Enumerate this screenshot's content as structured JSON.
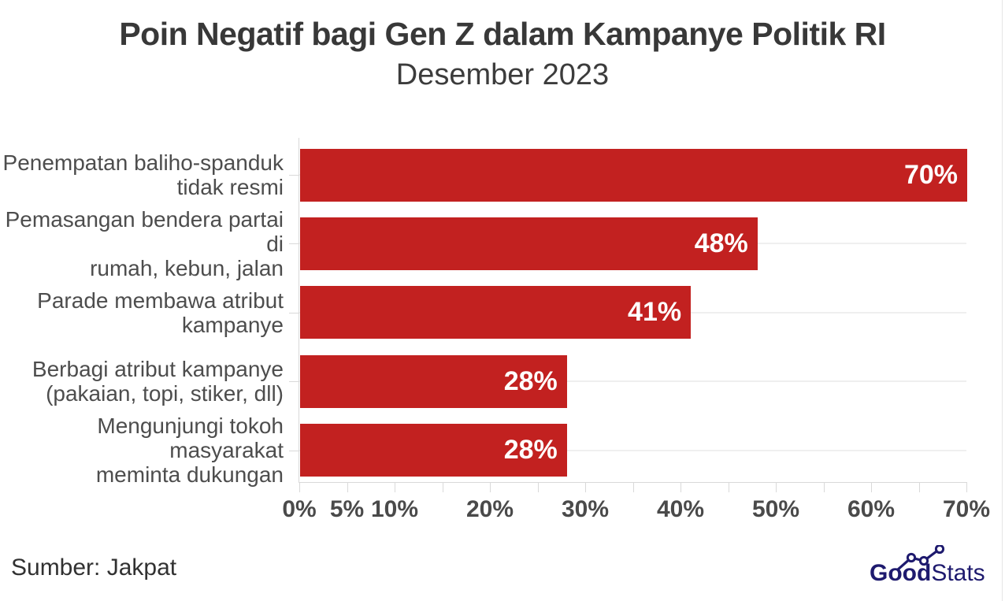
{
  "header": {
    "title": "Poin Negatif bagi Gen Z dalam Kampanye Politik RI",
    "subtitle": "Desember 2023"
  },
  "footer": {
    "source": "Sumber: Jakpat"
  },
  "logo": {
    "bold": "Good",
    "light": "Stats",
    "motif": "ascending-line-chart-icon"
  },
  "colors": {
    "bar": "#c22120",
    "title": "#383838",
    "category_label": "#4d4d4d",
    "tick_label": "#4a4a4a",
    "value_label": "#ffffff",
    "axis_line": "#d9d9d9",
    "grid_line": "#efefef",
    "logo_navy": "#1e1a6e",
    "source_text": "#313131"
  },
  "chart_data": {
    "type": "bar",
    "orientation": "horizontal",
    "title": "Poin Negatif bagi Gen Z dalam Kampanye Politik RI",
    "subtitle": "Desember 2023",
    "categories": [
      "Penempatan baliho-spanduk tidak resmi",
      "Pemasangan bendera partai di rumah, kebun, jalan",
      "Parade membawa atribut kampanye",
      "Berbagi atribut kampanye (pakaian, topi, stiker, dll)",
      "Mengunjungi tokoh masyarakat meminta dukungan"
    ],
    "categories_wrapped": [
      "Penempatan baliho-spanduk\ntidak resmi",
      "Pemasangan bendera partai di\nrumah, kebun, jalan",
      "Parade membawa atribut\nkampanye",
      "Berbagi atribut kampanye\n(pakaian, topi, stiker, dll)",
      "Mengunjungi tokoh masyarakat\nmeminta dukungan"
    ],
    "values": [
      70,
      48,
      41,
      28,
      28
    ],
    "value_labels": [
      "70%",
      "48%",
      "41%",
      "28%",
      "28%"
    ],
    "xlabel": "",
    "ylabel": "",
    "xlim": [
      0,
      70
    ],
    "minor_tick_step": 5,
    "x_ticks": [
      {
        "pos": 0,
        "label": "0%"
      },
      {
        "pos": 5,
        "label": "5%"
      },
      {
        "pos": 10,
        "label": "10%"
      },
      {
        "pos": 15,
        "label": ""
      },
      {
        "pos": 20,
        "label": "20%"
      },
      {
        "pos": 25,
        "label": ""
      },
      {
        "pos": 30,
        "label": "30%"
      },
      {
        "pos": 35,
        "label": ""
      },
      {
        "pos": 40,
        "label": "40%"
      },
      {
        "pos": 45,
        "label": ""
      },
      {
        "pos": 50,
        "label": "50%"
      },
      {
        "pos": 55,
        "label": ""
      },
      {
        "pos": 60,
        "label": "60%"
      },
      {
        "pos": 65,
        "label": ""
      },
      {
        "pos": 70,
        "label": "70%"
      }
    ],
    "grid": "horizontal light gridlines at each category center",
    "legend": "none",
    "source": "Jakpat"
  }
}
